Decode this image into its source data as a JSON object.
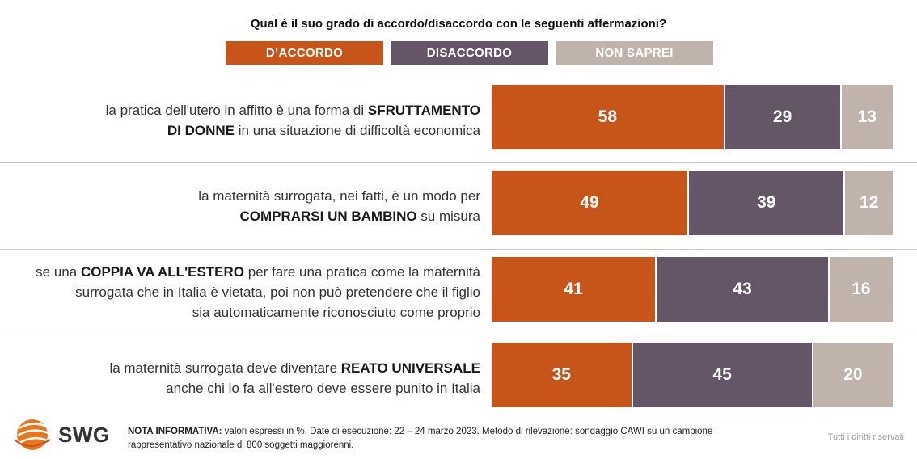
{
  "title": "Qual è il suo grado di accordo/disaccordo con le seguenti affermazioni?",
  "colors": {
    "accordo": "#c75419",
    "disaccordo": "#645666",
    "non_saprei": "#bfb3ab"
  },
  "legend": {
    "accordo": "D’ACCORDO",
    "disaccordo": "DISACCORDO",
    "non_saprei": "NON SAPREI"
  },
  "rows": [
    {
      "line1_pre": "la pratica dell'utero in affitto è una forma di ",
      "line1_bold": "SFRUTTAMENTO",
      "line2_bold": "DI DONNE",
      "line2_post": " in una situazione di difficoltà economica"
    },
    {
      "line1_pre": "la maternità surrogata, nei fatti, è un modo per",
      "line2_bold": "COMPRARSI UN BAMBINO",
      "line2_post": " su misura"
    },
    {
      "line1_pre": "se una ",
      "line1_bold": "COPPIA VA ALL'ESTERO",
      "line1_post": " per fare una pratica come la maternità",
      "line2": "surrogata che in Italia è vietata, poi non può pretendere che il figlio",
      "line3": "sia automaticamente riconosciuto come proprio"
    },
    {
      "line1_pre": "la maternità surrogata deve diventare ",
      "line1_bold": "REATO UNIVERSALE",
      "line2": "anche chi lo fa all'estero deve essere punito in Italia"
    }
  ],
  "chart_data": {
    "type": "bar",
    "orientation": "horizontal-stacked-100",
    "title": "Qual è il suo grado di accordo/disaccordo con le seguenti affermazioni?",
    "series": [
      {
        "name": "D’ACCORDO",
        "values": [
          58,
          49,
          41,
          35
        ]
      },
      {
        "name": "DISACCORDO",
        "values": [
          29,
          39,
          43,
          45
        ]
      },
      {
        "name": "NON SAPREI",
        "values": [
          13,
          12,
          16,
          20
        ]
      }
    ],
    "xlim": [
      0,
      100
    ],
    "legend": "top",
    "grid": false
  },
  "footer": {
    "brand": "SWG",
    "note_label": "NOTA INFORMATIVA:",
    "note_text": " valori espressi in %. Date di esecuzione: 22 – 24 marzo 2023. Metodo di rilevazione: sondaggio CAWI su un campione rappresentativo nazionale di 800 soggetti maggiorenni.",
    "rights": "Tutti i diritti riservati"
  }
}
